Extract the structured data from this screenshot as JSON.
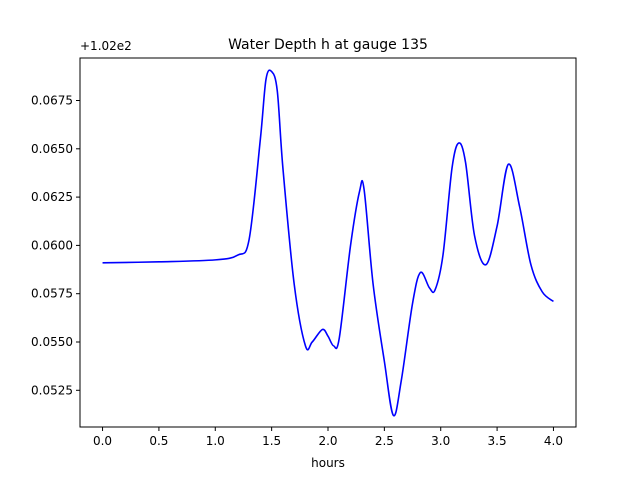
{
  "chart_data": {
    "type": "line",
    "title": "Water Depth h at gauge 135",
    "xlabel": "hours",
    "ylabel": "",
    "offset_label": "+1.02e2",
    "y_offset": 102,
    "xlim": [
      -0.2,
      4.2
    ],
    "ylim": [
      0.0506,
      0.0697
    ],
    "x_ticks": [
      0.0,
      0.5,
      1.0,
      1.5,
      2.0,
      2.5,
      3.0,
      3.5,
      4.0
    ],
    "x_tick_labels": [
      "0.0",
      "0.5",
      "1.0",
      "1.5",
      "2.0",
      "2.5",
      "3.0",
      "3.5",
      "4.0"
    ],
    "y_ticks": [
      0.0525,
      0.055,
      0.0575,
      0.06,
      0.0625,
      0.065,
      0.0675
    ],
    "y_tick_labels": [
      "0.0525",
      "0.0550",
      "0.0575",
      "0.0600",
      "0.0625",
      "0.0650",
      "0.0675"
    ],
    "grid": false,
    "series": [
      {
        "color": "#0000ff",
        "x": [
          0.0,
          0.5,
          1.0,
          1.2,
          1.3,
          1.4,
          1.45,
          1.5,
          1.55,
          1.6,
          1.7,
          1.8,
          1.86,
          1.95,
          2.0,
          2.05,
          2.1,
          2.2,
          2.28,
          2.32,
          2.4,
          2.5,
          2.58,
          2.65,
          2.75,
          2.82,
          2.9,
          2.95,
          3.02,
          3.1,
          3.16,
          3.22,
          3.3,
          3.4,
          3.5,
          3.6,
          3.7,
          3.8,
          3.9,
          4.0
        ],
        "y": [
          0.0591,
          0.05915,
          0.05925,
          0.0595,
          0.0603,
          0.0655,
          0.0686,
          0.069,
          0.068,
          0.064,
          0.058,
          0.0548,
          0.055,
          0.05565,
          0.0553,
          0.0548,
          0.0552,
          0.06,
          0.0628,
          0.0629,
          0.058,
          0.054,
          0.0512,
          0.053,
          0.057,
          0.0586,
          0.0578,
          0.0577,
          0.0595,
          0.064,
          0.0653,
          0.0643,
          0.0605,
          0.059,
          0.061,
          0.0642,
          0.062,
          0.059,
          0.0576,
          0.0571
        ]
      }
    ]
  }
}
